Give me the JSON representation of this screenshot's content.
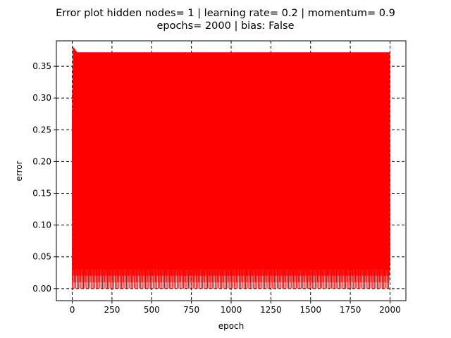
{
  "chart_data": {
    "type": "line",
    "title_line1": "Error plot hidden nodes= 1 | learning rate= 0.2 | momentum= 0.9",
    "title_line2": "epochs= 2000 | bias: False",
    "xlabel": "epoch",
    "ylabel": "error",
    "xlim": [
      -100,
      2100
    ],
    "ylim": [
      -0.019,
      0.39
    ],
    "x_ticks": [
      0,
      250,
      500,
      750,
      1000,
      1250,
      1500,
      1750,
      2000
    ],
    "x_tick_labels": [
      "0",
      "250",
      "500",
      "750",
      "1000",
      "1250",
      "1500",
      "1750",
      "2000"
    ],
    "y_ticks": [
      0.0,
      0.05,
      0.1,
      0.15,
      0.2,
      0.25,
      0.3,
      0.35
    ],
    "y_tick_labels": [
      "0.00",
      "0.05",
      "0.10",
      "0.15",
      "0.20",
      "0.25",
      "0.30",
      "0.35"
    ],
    "grid": true,
    "grid_style": "dashed",
    "legend": "none",
    "series": [
      {
        "color": "#ff0000",
        "pattern": "oscillating",
        "x_start": 0,
        "x_end": 1999,
        "initial_peak": 0.38,
        "upper_envelope": 0.372,
        "lower_values": [
          0.0,
          0.01,
          0.02,
          0.03,
          0.04
        ],
        "oscillation_period_epochs": 2
      }
    ]
  }
}
